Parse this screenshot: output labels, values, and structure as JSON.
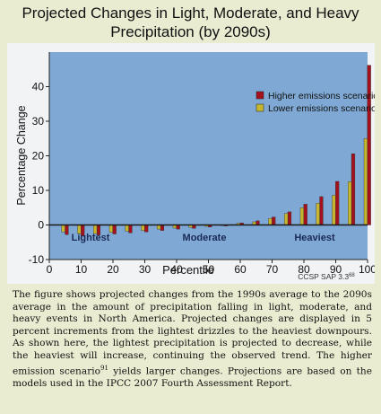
{
  "title_line1": "Projected Changes in Light, Moderate, and Heavy",
  "title_line2": "Precipitation (by 2090s)",
  "colors": {
    "plot_bg": "#7fa9d4",
    "higher": "#a3111d",
    "lower": "#c6b62e",
    "zero_line": "#1a1a1a"
  },
  "chart_data": {
    "type": "bar",
    "xlabel": "Percentile",
    "ylabel": "Percentage Change",
    "xlim": [
      0,
      100
    ],
    "ylim": [
      -10,
      50
    ],
    "xticks": [
      0,
      10,
      20,
      30,
      40,
      50,
      60,
      70,
      80,
      90,
      100
    ],
    "yticks": [
      -10,
      0,
      10,
      20,
      30,
      40
    ],
    "x": [
      5,
      10,
      15,
      20,
      25,
      30,
      35,
      40,
      45,
      50,
      55,
      60,
      65,
      70,
      75,
      80,
      85,
      90,
      95,
      100
    ],
    "series": [
      {
        "name": "Higher emissions scenario",
        "sup": "91",
        "values": [
          -2.8,
          -3.2,
          -2.9,
          -2.6,
          -2.3,
          -2.0,
          -1.6,
          -1.2,
          -1.0,
          -0.6,
          -0.3,
          0.6,
          1.2,
          2.3,
          3.8,
          6.0,
          8.2,
          12.6,
          20.6,
          46.2
        ]
      },
      {
        "name": "Lower emissions scenario",
        "sup": "91",
        "values": [
          -2.0,
          -2.5,
          -2.5,
          -2.1,
          -1.8,
          -1.6,
          -1.2,
          -0.9,
          -0.7,
          -0.4,
          -0.2,
          0.5,
          0.9,
          1.9,
          3.3,
          5.0,
          6.3,
          8.6,
          12.5,
          25.0
        ]
      }
    ],
    "annotations": [
      "Lightest",
      "Moderate",
      "Heaviest"
    ],
    "legend_position": "top-right",
    "source": "CCSP SAP 3.3",
    "source_sup": "68"
  },
  "caption": {
    "part1": "The figure shows projected changes from the 1990s average to the 2090s average in the amount of precipitation falling in light, moderate, and heavy events in North America. Projected changes are displayed in 5 percent increments from the lightest drizzles to the heaviest downpours. As shown here, the lightest precipitation is projected to decrease, while the heaviest will increase, continuing the observed trend. The higher emission scenario",
    "sup": "91",
    "part2": " yields larger changes. Projections are based on the models used in the IPCC 2007 Fourth Assessment Report."
  }
}
